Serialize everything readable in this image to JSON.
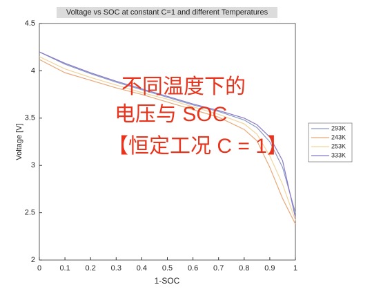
{
  "chart_data": {
    "type": "line",
    "title": "Voltage vs SOC at constant C=1 and different Temperatures",
    "xlabel": "1-SOC",
    "ylabel": "Voltage [V]",
    "annotations": [
      "不同温度下的",
      "电压与 SOC",
      "【恒定工况 C = 1】"
    ],
    "annotation_color": "#e8341c",
    "x": [
      0,
      0.1,
      0.2,
      0.3,
      0.4,
      0.5,
      0.6,
      0.7,
      0.8,
      0.85,
      0.9,
      0.95,
      1
    ],
    "series": [
      {
        "name": "293K",
        "color": "#8a9ac4",
        "values": [
          4.2,
          4.07,
          3.97,
          3.88,
          3.8,
          3.72,
          3.64,
          3.57,
          3.48,
          3.4,
          3.25,
          2.98,
          2.5
        ]
      },
      {
        "name": "243K",
        "color": "#e8a878",
        "values": [
          4.12,
          3.98,
          3.9,
          3.82,
          3.75,
          3.67,
          3.59,
          3.51,
          3.38,
          3.26,
          2.98,
          2.65,
          2.38
        ]
      },
      {
        "name": "253K",
        "color": "#f2d49a",
        "values": [
          4.15,
          4.02,
          3.93,
          3.85,
          3.77,
          3.7,
          3.62,
          3.54,
          3.44,
          3.33,
          3.1,
          2.8,
          2.42
        ]
      },
      {
        "name": "333K",
        "color": "#8878c8",
        "values": [
          4.2,
          4.08,
          3.98,
          3.89,
          3.81,
          3.73,
          3.65,
          3.58,
          3.5,
          3.43,
          3.3,
          3.05,
          2.45
        ]
      }
    ],
    "xlim": [
      0,
      1
    ],
    "xticks": [
      0,
      0.1,
      0.2,
      0.3,
      0.4,
      0.5,
      0.6,
      0.7,
      0.8,
      0.9,
      1
    ],
    "ylim": [
      2,
      4.5
    ],
    "yticks": [
      2,
      2.5,
      3,
      3.5,
      4,
      4.5
    ],
    "legend": "outside-right"
  }
}
